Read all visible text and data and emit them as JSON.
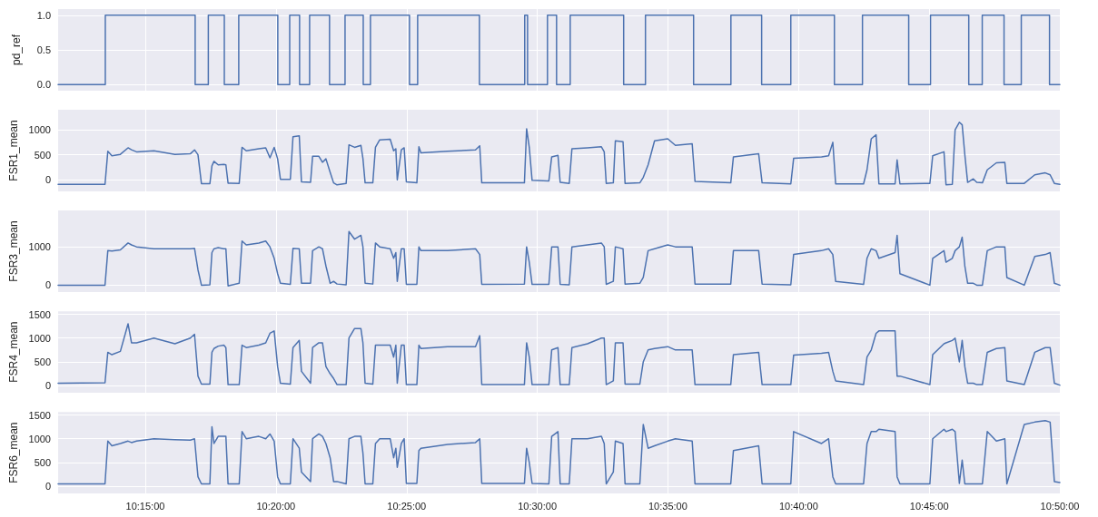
{
  "chart_data": [
    {
      "type": "step",
      "ylabel": "pd_ref",
      "grid": true,
      "tick_labels": "y",
      "xlim": [
        10.1944,
        10.8333
      ],
      "ylim": [
        -0.09,
        1.09
      ],
      "yticks": [
        {
          "value": 0,
          "label": "0.0"
        },
        {
          "value": 0.5,
          "label": "0.5"
        },
        {
          "value": 1,
          "label": "1.0"
        }
      ],
      "xticks": [
        {
          "value": 10.25,
          "label": null
        },
        {
          "value": 10.3333,
          "label": null
        },
        {
          "value": 10.4167,
          "label": null
        },
        {
          "value": 10.5,
          "label": null
        },
        {
          "value": 10.5833,
          "label": null
        },
        {
          "value": 10.6667,
          "label": null
        },
        {
          "value": 10.75,
          "label": null
        },
        {
          "value": 10.8333,
          "label": null
        }
      ],
      "x": [
        10.1944,
        10.2245,
        10.2818,
        10.2902,
        10.3004,
        10.3096,
        10.3345,
        10.3421,
        10.3484,
        10.3548,
        10.3675,
        10.3774,
        10.389,
        10.3936,
        10.4185,
        10.4237,
        10.4631,
        10.492,
        10.4938,
        10.5065,
        10.5123,
        10.521,
        10.5551,
        10.569,
        10.5997,
        10.6235,
        10.6431,
        10.6617,
        10.6895,
        10.7074,
        10.7369,
        10.7508,
        10.7752,
        10.7838,
        10.7977,
        10.8087,
        10.8267,
        10.8333
      ],
      "series": [
        {
          "color": "#4c72b0",
          "values": [
            0,
            1,
            0,
            1,
            0,
            1,
            0,
            1,
            0,
            1,
            0,
            1,
            0,
            1,
            0,
            1,
            0,
            1,
            0,
            1,
            0,
            1,
            0,
            1,
            0,
            1,
            0,
            1,
            0,
            1,
            0,
            1,
            0,
            1,
            0,
            1,
            0,
            0
          ]
        }
      ]
    },
    {
      "type": "line",
      "ylabel": "FSR1_mean",
      "grid": true,
      "tick_labels": "y",
      "xlim": [
        10.1944,
        10.8333
      ],
      "ylim": [
        -230,
        1400
      ],
      "yticks": [
        0,
        500,
        1000
      ],
      "xticks": [
        {
          "value": 10.25,
          "label": null
        },
        {
          "value": 10.3333,
          "label": null
        },
        {
          "value": 10.4167,
          "label": null
        },
        {
          "value": 10.5,
          "label": null
        },
        {
          "value": 10.5833,
          "label": null
        },
        {
          "value": 10.6667,
          "label": null
        },
        {
          "value": 10.75,
          "label": null
        },
        {
          "value": 10.8333,
          "label": null
        }
      ],
      "x": [
        10.1944,
        10.2243,
        10.2261,
        10.2287,
        10.2341,
        10.239,
        10.2412,
        10.2444,
        10.2555,
        10.2689,
        10.2787,
        10.2814,
        10.2836,
        10.2858,
        10.2912,
        10.2925,
        10.2938,
        10.2965,
        10.3001,
        10.3014,
        10.3028,
        10.3099,
        10.3117,
        10.3144,
        10.3224,
        10.3268,
        10.3295,
        10.3322,
        10.3344,
        10.3362,
        10.3425,
        10.3442,
        10.3482,
        10.3496,
        10.3554,
        10.3567,
        10.3607,
        10.363,
        10.3652,
        10.3679,
        10.3701,
        10.3723,
        10.3781,
        10.3799,
        10.3835,
        10.3875,
        10.3888,
        10.3902,
        10.3951,
        10.3968,
        10.3995,
        10.4062,
        10.4084,
        10.4098,
        10.4107,
        10.4133,
        10.4151,
        10.4165,
        10.4232,
        10.4245,
        10.4258,
        10.4428,
        10.4606,
        10.4633,
        10.4646,
        10.4918,
        10.4932,
        10.4949,
        10.4967,
        10.5074,
        10.5092,
        10.5132,
        10.5146,
        10.5204,
        10.5221,
        10.532,
        10.5409,
        10.5427,
        10.544,
        10.5485,
        10.5498,
        10.5547,
        10.556,
        10.5654,
        10.5676,
        10.5707,
        10.5748,
        10.5832,
        10.5881,
        10.5988,
        10.6006,
        10.6234,
        10.6251,
        10.6412,
        10.6434,
        10.6617,
        10.6635,
        10.6813,
        10.6858,
        10.6885,
        10.6903,
        10.7081,
        10.7103,
        10.713,
        10.7161,
        10.7179,
        10.7282,
        10.7295,
        10.7313,
        10.7504,
        10.7522,
        10.7594,
        10.7607,
        10.7647,
        10.7665,
        10.7692,
        10.771,
        10.7727,
        10.7745,
        10.7781,
        10.7803,
        10.7839,
        10.787,
        10.7928,
        10.7982,
        10.7995,
        10.8106,
        10.8173,
        10.824,
        10.8271,
        10.8298,
        10.8333
      ],
      "series": [
        {
          "color": "#4c72b0",
          "values": [
            -90,
            -90,
            570,
            480,
            510,
            640,
            600,
            560,
            580,
            510,
            520,
            600,
            500,
            -75,
            -75,
            280,
            370,
            300,
            310,
            300,
            -65,
            -70,
            650,
            580,
            620,
            640,
            440,
            650,
            420,
            10,
            10,
            860,
            880,
            -40,
            -50,
            470,
            470,
            350,
            420,
            150,
            -60,
            -100,
            -70,
            700,
            650,
            690,
            430,
            -60,
            -60,
            650,
            800,
            810,
            580,
            620,
            0,
            600,
            640,
            -40,
            -60,
            660,
            540,
            570,
            600,
            680,
            -60,
            -60,
            1020,
            650,
            -10,
            -20,
            460,
            490,
            -50,
            -70,
            620,
            640,
            660,
            560,
            -70,
            -60,
            780,
            760,
            -70,
            -60,
            50,
            300,
            780,
            820,
            690,
            720,
            -30,
            -60,
            460,
            520,
            -60,
            -80,
            430,
            460,
            480,
            750,
            -80,
            -80,
            200,
            820,
            900,
            -80,
            -80,
            400,
            -80,
            -70,
            480,
            560,
            -100,
            -90,
            1000,
            1150,
            1100,
            500,
            -50,
            20,
            -50,
            -60,
            200,
            340,
            350,
            -70,
            -70,
            100,
            140,
            100,
            -70,
            -90
          ]
        }
      ]
    },
    {
      "type": "line",
      "ylabel": "FSR3_mean",
      "grid": true,
      "tick_labels": "y",
      "xlim": [
        10.1944,
        10.8333
      ],
      "ylim": [
        -180,
        1950
      ],
      "yticks": [
        0,
        1000
      ],
      "xticks": [
        {
          "value": 10.25,
          "label": null
        },
        {
          "value": 10.3333,
          "label": null
        },
        {
          "value": 10.4167,
          "label": null
        },
        {
          "value": 10.5,
          "label": null
        },
        {
          "value": 10.5833,
          "label": null
        },
        {
          "value": 10.6667,
          "label": null
        },
        {
          "value": 10.75,
          "label": null
        },
        {
          "value": 10.8333,
          "label": null
        }
      ],
      "x": [
        10.1944,
        10.2243,
        10.2261,
        10.2287,
        10.2341,
        10.239,
        10.2412,
        10.2444,
        10.2555,
        10.2689,
        10.2787,
        10.2814,
        10.2836,
        10.2858,
        10.2912,
        10.2925,
        10.2938,
        10.2965,
        10.3001,
        10.3014,
        10.3028,
        10.3099,
        10.3117,
        10.3144,
        10.3224,
        10.3268,
        10.3295,
        10.3322,
        10.3344,
        10.3362,
        10.3425,
        10.3442,
        10.3482,
        10.3496,
        10.3554,
        10.3567,
        10.3607,
        10.363,
        10.3652,
        10.3679,
        10.3701,
        10.3723,
        10.3781,
        10.3799,
        10.3835,
        10.3875,
        10.3888,
        10.3902,
        10.3951,
        10.3968,
        10.3995,
        10.4062,
        10.4084,
        10.4098,
        10.4107,
        10.4133,
        10.4151,
        10.4165,
        10.4232,
        10.4245,
        10.4258,
        10.4428,
        10.4606,
        10.4633,
        10.4646,
        10.4918,
        10.4932,
        10.4949,
        10.4967,
        10.5074,
        10.5092,
        10.5132,
        10.5146,
        10.5204,
        10.5221,
        10.532,
        10.5409,
        10.5427,
        10.544,
        10.5485,
        10.5498,
        10.5547,
        10.556,
        10.5654,
        10.5676,
        10.5707,
        10.5748,
        10.5832,
        10.5881,
        10.5988,
        10.6006,
        10.6234,
        10.6251,
        10.6412,
        10.6434,
        10.6617,
        10.6635,
        10.6813,
        10.6858,
        10.6885,
        10.6903,
        10.7081,
        10.7103,
        10.713,
        10.7161,
        10.7179,
        10.7282,
        10.7295,
        10.7313,
        10.7504,
        10.7522,
        10.7594,
        10.7607,
        10.7647,
        10.7665,
        10.7692,
        10.771,
        10.7727,
        10.7745,
        10.7781,
        10.7803,
        10.7839,
        10.787,
        10.7928,
        10.7982,
        10.7995,
        10.8106,
        10.8173,
        10.824,
        10.8271,
        10.8298,
        10.8333
      ],
      "series": [
        {
          "color": "#4c72b0",
          "values": [
            0,
            0,
            900,
            890,
            920,
            1100,
            1050,
            1000,
            950,
            950,
            950,
            960,
            400,
            0,
            10,
            850,
            950,
            980,
            950,
            950,
            -20,
            50,
            1150,
            1050,
            1100,
            1150,
            1000,
            700,
            300,
            50,
            20,
            960,
            950,
            50,
            50,
            900,
            1000,
            950,
            500,
            50,
            100,
            30,
            10,
            1400,
            1200,
            1300,
            1000,
            50,
            30,
            1100,
            1000,
            950,
            700,
            850,
            100,
            950,
            950,
            20,
            20,
            1000,
            900,
            900,
            950,
            800,
            20,
            30,
            1000,
            600,
            20,
            20,
            1000,
            1000,
            20,
            10,
            1000,
            1050,
            1100,
            1000,
            20,
            100,
            1000,
            950,
            30,
            50,
            200,
            900,
            950,
            1050,
            1000,
            1000,
            30,
            30,
            900,
            900,
            30,
            10,
            800,
            900,
            950,
            800,
            100,
            20,
            700,
            950,
            900,
            700,
            850,
            1300,
            300,
            0,
            700,
            900,
            600,
            700,
            900,
            1000,
            1250,
            500,
            50,
            50,
            0,
            0,
            900,
            1000,
            1000,
            200,
            0,
            750,
            800,
            850,
            50,
            0
          ]
        }
      ]
    },
    {
      "type": "line",
      "ylabel": "FSR4_mean",
      "grid": true,
      "tick_labels": "y",
      "xlim": [
        10.1944,
        10.8333
      ],
      "ylim": [
        -150,
        1560
      ],
      "yticks": [
        0,
        500,
        1000,
        1500
      ],
      "xticks": [
        {
          "value": 10.25,
          "label": null
        },
        {
          "value": 10.3333,
          "label": null
        },
        {
          "value": 10.4167,
          "label": null
        },
        {
          "value": 10.5,
          "label": null
        },
        {
          "value": 10.5833,
          "label": null
        },
        {
          "value": 10.6667,
          "label": null
        },
        {
          "value": 10.75,
          "label": null
        },
        {
          "value": 10.8333,
          "label": null
        }
      ],
      "x": [
        10.1944,
        10.2243,
        10.2261,
        10.2287,
        10.2341,
        10.239,
        10.2412,
        10.2444,
        10.2555,
        10.2689,
        10.2787,
        10.2814,
        10.2836,
        10.2858,
        10.2912,
        10.2925,
        10.2938,
        10.2965,
        10.3001,
        10.3014,
        10.3028,
        10.3099,
        10.3117,
        10.3144,
        10.3224,
        10.3268,
        10.3295,
        10.3322,
        10.3344,
        10.3362,
        10.3425,
        10.3442,
        10.3482,
        10.3496,
        10.3554,
        10.3567,
        10.3607,
        10.363,
        10.3652,
        10.3679,
        10.3701,
        10.3723,
        10.3781,
        10.3799,
        10.3835,
        10.3875,
        10.3888,
        10.3902,
        10.3951,
        10.3968,
        10.3995,
        10.4062,
        10.4084,
        10.4098,
        10.4107,
        10.4133,
        10.4151,
        10.4165,
        10.4232,
        10.4245,
        10.4258,
        10.4428,
        10.4606,
        10.4633,
        10.4646,
        10.4918,
        10.4932,
        10.4949,
        10.4967,
        10.5074,
        10.5092,
        10.5132,
        10.5146,
        10.5204,
        10.5221,
        10.532,
        10.5409,
        10.5427,
        10.544,
        10.5485,
        10.5498,
        10.5547,
        10.556,
        10.5654,
        10.5676,
        10.5707,
        10.5748,
        10.5832,
        10.5881,
        10.5988,
        10.6006,
        10.6234,
        10.6251,
        10.6412,
        10.6434,
        10.6617,
        10.6635,
        10.6813,
        10.6858,
        10.6885,
        10.6903,
        10.7081,
        10.7103,
        10.713,
        10.7161,
        10.7179,
        10.7282,
        10.7295,
        10.7313,
        10.7504,
        10.7522,
        10.7594,
        10.7607,
        10.7647,
        10.7665,
        10.7692,
        10.771,
        10.7727,
        10.7745,
        10.7781,
        10.7803,
        10.7839,
        10.787,
        10.7928,
        10.7982,
        10.7995,
        10.8106,
        10.8173,
        10.824,
        10.8271,
        10.8298,
        10.8333
      ],
      "series": [
        {
          "color": "#4c72b0",
          "values": [
            50,
            60,
            700,
            650,
            720,
            1300,
            900,
            900,
            1000,
            880,
            1000,
            1080,
            200,
            30,
            30,
            700,
            780,
            830,
            850,
            800,
            20,
            20,
            850,
            800,
            850,
            900,
            1100,
            1150,
            400,
            50,
            30,
            800,
            950,
            300,
            50,
            800,
            900,
            900,
            400,
            250,
            150,
            20,
            20,
            1000,
            1200,
            1200,
            900,
            50,
            30,
            850,
            850,
            850,
            600,
            850,
            50,
            850,
            850,
            20,
            20,
            850,
            780,
            820,
            820,
            1050,
            20,
            20,
            900,
            600,
            20,
            20,
            750,
            800,
            20,
            20,
            800,
            880,
            1000,
            1000,
            20,
            100,
            900,
            900,
            30,
            30,
            500,
            750,
            780,
            820,
            750,
            750,
            20,
            20,
            650,
            700,
            20,
            20,
            640,
            680,
            700,
            300,
            100,
            20,
            600,
            750,
            1100,
            1150,
            1150,
            200,
            200,
            20,
            650,
            880,
            900,
            950,
            1000,
            500,
            950,
            400,
            50,
            50,
            20,
            20,
            700,
            780,
            800,
            100,
            20,
            700,
            800,
            800,
            50,
            10
          ]
        }
      ]
    },
    {
      "type": "line",
      "ylabel": "FSR6_mean",
      "grid": true,
      "xlim": [
        10.1944,
        10.8333
      ],
      "ylim": [
        -150,
        1560
      ],
      "yticks": [
        0,
        500,
        1000,
        1500
      ],
      "xticks": [
        {
          "value": 10.25,
          "label": "10:15:00"
        },
        {
          "value": 10.3333,
          "label": "10:20:00"
        },
        {
          "value": 10.4167,
          "label": "10:25:00"
        },
        {
          "value": 10.5,
          "label": "10:30:00"
        },
        {
          "value": 10.5833,
          "label": "10:35:00"
        },
        {
          "value": 10.6667,
          "label": "10:40:00"
        },
        {
          "value": 10.75,
          "label": "10:45:00"
        },
        {
          "value": 10.8333,
          "label": "10:50:00"
        }
      ],
      "x": [
        10.1944,
        10.2243,
        10.2261,
        10.2287,
        10.2341,
        10.239,
        10.2412,
        10.2444,
        10.2555,
        10.2689,
        10.2787,
        10.2814,
        10.2836,
        10.2858,
        10.2912,
        10.2925,
        10.2938,
        10.2965,
        10.3001,
        10.3014,
        10.3028,
        10.3099,
        10.3117,
        10.3144,
        10.3224,
        10.3268,
        10.3295,
        10.3322,
        10.3344,
        10.3362,
        10.3425,
        10.3442,
        10.3482,
        10.3496,
        10.3554,
        10.3567,
        10.3607,
        10.363,
        10.3652,
        10.3679,
        10.3701,
        10.3723,
        10.3781,
        10.3799,
        10.3835,
        10.3875,
        10.3888,
        10.3902,
        10.3951,
        10.3968,
        10.3995,
        10.4062,
        10.4084,
        10.4098,
        10.4107,
        10.4133,
        10.4151,
        10.4165,
        10.4232,
        10.4245,
        10.4258,
        10.4428,
        10.4606,
        10.4633,
        10.4646,
        10.4918,
        10.4932,
        10.4949,
        10.4967,
        10.5074,
        10.5092,
        10.5132,
        10.5146,
        10.5204,
        10.5221,
        10.532,
        10.5409,
        10.5427,
        10.544,
        10.5485,
        10.5498,
        10.5547,
        10.556,
        10.5654,
        10.5676,
        10.5707,
        10.5748,
        10.5832,
        10.5881,
        10.5988,
        10.6006,
        10.6234,
        10.6251,
        10.6412,
        10.6434,
        10.6617,
        10.6635,
        10.6813,
        10.6858,
        10.6885,
        10.6903,
        10.7081,
        10.7103,
        10.713,
        10.7161,
        10.7179,
        10.7282,
        10.7295,
        10.7313,
        10.7504,
        10.7522,
        10.7594,
        10.7607,
        10.7647,
        10.7665,
        10.7692,
        10.771,
        10.7727,
        10.7745,
        10.7781,
        10.7803,
        10.7839,
        10.787,
        10.7928,
        10.7982,
        10.7995,
        10.8106,
        10.8173,
        10.824,
        10.8271,
        10.8298,
        10.8333
      ],
      "series": [
        {
          "color": "#4c72b0",
          "values": [
            50,
            50,
            950,
            850,
            900,
            950,
            920,
            950,
            1000,
            980,
            970,
            1000,
            200,
            50,
            50,
            1250,
            900,
            1050,
            1050,
            1050,
            50,
            50,
            1150,
            1000,
            1050,
            1000,
            1100,
            950,
            200,
            50,
            50,
            1000,
            800,
            300,
            100,
            1000,
            1100,
            1050,
            900,
            600,
            100,
            100,
            50,
            1000,
            1050,
            1050,
            700,
            50,
            50,
            900,
            1000,
            1000,
            600,
            800,
            400,
            900,
            1000,
            60,
            60,
            750,
            800,
            880,
            920,
            1000,
            60,
            60,
            800,
            500,
            60,
            50,
            1050,
            1150,
            50,
            50,
            1000,
            1000,
            1050,
            900,
            50,
            300,
            950,
            900,
            50,
            50,
            1300,
            800,
            850,
            950,
            1000,
            950,
            50,
            50,
            750,
            850,
            50,
            50,
            1150,
            900,
            1000,
            200,
            50,
            50,
            900,
            1150,
            1150,
            1200,
            1150,
            200,
            50,
            50,
            1000,
            1200,
            1150,
            1200,
            1150,
            60,
            550,
            50,
            50,
            50,
            50,
            50,
            1150,
            950,
            1000,
            50,
            1300,
            1350,
            1380,
            1350,
            100,
            80
          ]
        }
      ]
    }
  ]
}
